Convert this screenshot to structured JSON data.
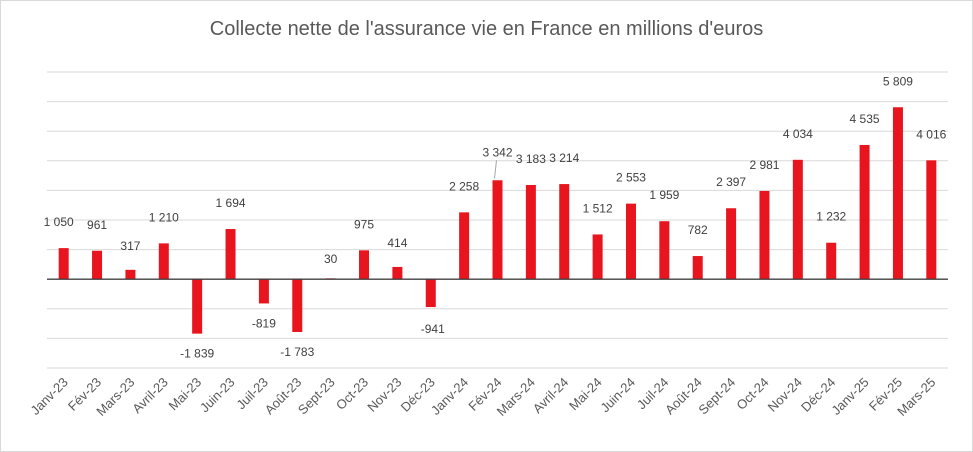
{
  "chart_data": {
    "type": "bar",
    "title": "Collecte nette de l'assurance vie en France en millions d'euros",
    "xlabel": "",
    "ylabel": "",
    "ylim": [
      -3000,
      7000
    ],
    "grid": true,
    "legend": "none",
    "categories": [
      "Janv-23",
      "Fév-23",
      "Mars-23",
      "Avril-23",
      "Mai-23",
      "Juin-23",
      "Juil-23",
      "Août-23",
      "Sept-23",
      "Oct-23",
      "Nov-23",
      "Déc-23",
      "Janv-24",
      "Fév-24",
      "Mars-24",
      "Avril-24",
      "Mai-24",
      "Juin-24",
      "Juil-24",
      "Août-24",
      "Sept-24",
      "Oct-24",
      "Nov-24",
      "Déc-24",
      "Janv-25",
      "Fév-25",
      "Mars-25"
    ],
    "values": [
      1050,
      961,
      317,
      1210,
      -1839,
      1694,
      -819,
      -1783,
      30,
      975,
      414,
      -941,
      2258,
      3342,
      3183,
      3214,
      1512,
      2553,
      1959,
      782,
      2397,
      2981,
      4034,
      1232,
      4535,
      5809,
      4016
    ],
    "value_labels": [
      "1 050",
      "961",
      "317",
      "1 210",
      "-1 839",
      "1 694",
      "-819",
      "-1 783",
      "30",
      "975",
      "414",
      "-941",
      "2 258",
      "3 342",
      "3 183",
      "3 214",
      "1 512",
      "2 553",
      "1 959",
      "782",
      "2 397",
      "2 981",
      "4 034",
      "1 232",
      "4 535",
      "5 809",
      "4 016"
    ],
    "bar_color": "#e8141e"
  }
}
